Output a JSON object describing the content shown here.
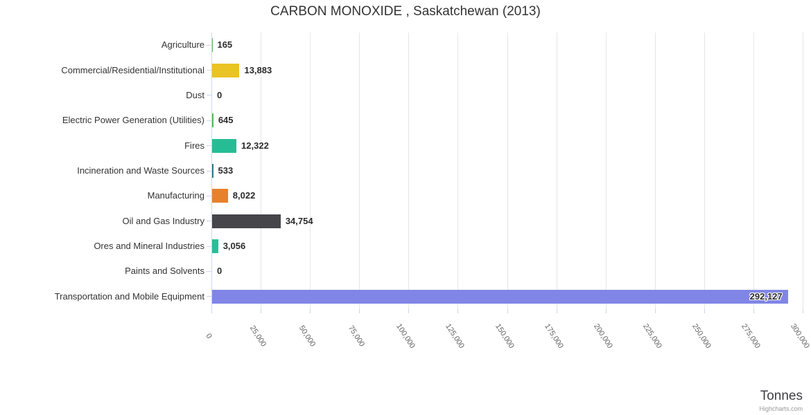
{
  "credits": "Highcharts.com",
  "chart_data": {
    "type": "bar",
    "title": "CARBON MONOXIDE , Saskatchewan (2013)",
    "xlabel": "Tonnes",
    "ylabel": "",
    "categories": [
      "Agriculture",
      "Commercial/Residential/Institutional",
      "Dust",
      "Electric Power Generation (Utilities)",
      "Fires",
      "Incineration and Waste Sources",
      "Manufacturing",
      "Oil and Gas Industry",
      "Ores and Mineral Industries",
      "Paints and Solvents",
      "Transportation and Mobile Equipment"
    ],
    "values": [
      165,
      13883,
      0,
      645,
      12322,
      533,
      8022,
      34754,
      3056,
      0,
      292127
    ],
    "value_labels": [
      "165",
      "13,883",
      "0",
      "645",
      "12,322",
      "533",
      "8,022",
      "34,754",
      "3,056",
      "0",
      "292,127"
    ],
    "bar_colors": [
      "#57b956",
      "#eac324",
      "#999999",
      "#57b956",
      "#27bd94",
      "#2b7a8c",
      "#e8812b",
      "#45454a",
      "#2abf97",
      "#999999",
      "#8186e6"
    ],
    "label_inside_index": 10,
    "axis": {
      "min": 0,
      "max": 300000,
      "tick_interval": 25000,
      "tick_labels": [
        "0",
        "25,000",
        "50,000",
        "75,000",
        "100,000",
        "125,000",
        "150,000",
        "175,000",
        "200,000",
        "225,000",
        "250,000",
        "275,000",
        "300,000"
      ]
    },
    "grid": true,
    "legend": "none"
  },
  "colors": {
    "gridline": "#e6e6e6",
    "axis_line": "#ccd6eb",
    "title_text": "#333333",
    "category_text": "#333333",
    "tick_text": "#666666",
    "value_text": "#2b2b2b"
  }
}
